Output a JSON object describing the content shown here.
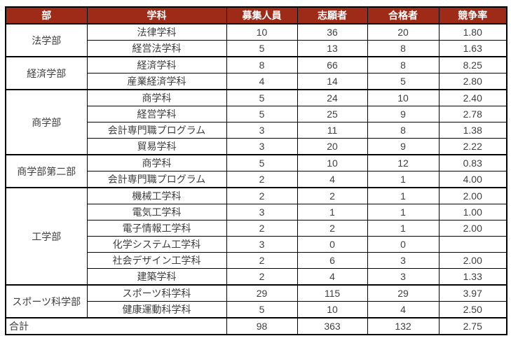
{
  "colors": {
    "header_bg": "#9e2b17",
    "header_text": "#ffffff",
    "body_text": "#3f3f3f",
    "border": "#000000"
  },
  "table": {
    "headers": {
      "dept": "部",
      "subject": "学科",
      "capacity": "募集人員",
      "applicants": "志願者",
      "accepted": "合格者",
      "ratio": "競争率"
    },
    "groups": [
      {
        "dept": "法学部",
        "rows": [
          {
            "name": "法律学科",
            "capacity": "10",
            "applicants": "36",
            "accepted": "20",
            "ratio": "1.80"
          },
          {
            "name": "経営法学科",
            "capacity": "5",
            "applicants": "13",
            "accepted": "8",
            "ratio": "1.63"
          }
        ]
      },
      {
        "dept": "経済学部",
        "rows": [
          {
            "name": "経済学科",
            "capacity": "8",
            "applicants": "66",
            "accepted": "8",
            "ratio": "8.25"
          },
          {
            "name": "産業経済学科",
            "capacity": "4",
            "applicants": "14",
            "accepted": "5",
            "ratio": "2.80"
          }
        ]
      },
      {
        "dept": "商学部",
        "rows": [
          {
            "name": "商学科",
            "capacity": "5",
            "applicants": "24",
            "accepted": "10",
            "ratio": "2.40"
          },
          {
            "name": "経営学科",
            "capacity": "5",
            "applicants": "25",
            "accepted": "9",
            "ratio": "2.78"
          },
          {
            "name": "会計専門職プログラム",
            "capacity": "3",
            "applicants": "11",
            "accepted": "8",
            "ratio": "1.38"
          },
          {
            "name": "貿易学科",
            "capacity": "3",
            "applicants": "20",
            "accepted": "9",
            "ratio": "2.22"
          }
        ]
      },
      {
        "dept": "商学部第二部",
        "rows": [
          {
            "name": "商学科",
            "capacity": "5",
            "applicants": "10",
            "accepted": "12",
            "ratio": "0.83"
          },
          {
            "name": "会計専門職プログラム",
            "capacity": "2",
            "applicants": "4",
            "accepted": "1",
            "ratio": "4.00"
          }
        ]
      },
      {
        "dept": "工学部",
        "rows": [
          {
            "name": "機械工学科",
            "capacity": "2",
            "applicants": "2",
            "accepted": "1",
            "ratio": "2.00"
          },
          {
            "name": "電気工学科",
            "capacity": "3",
            "applicants": "1",
            "accepted": "1",
            "ratio": "1.00"
          },
          {
            "name": "電子情報工学科",
            "capacity": "2",
            "applicants": "2",
            "accepted": "1",
            "ratio": "2.00"
          },
          {
            "name": "化学システム工学科",
            "capacity": "3",
            "applicants": "0",
            "accepted": "0",
            "ratio": ""
          },
          {
            "name": "社会デザイン工学科",
            "capacity": "2",
            "applicants": "6",
            "accepted": "3",
            "ratio": "2.00"
          },
          {
            "name": "建築学科",
            "capacity": "2",
            "applicants": "4",
            "accepted": "3",
            "ratio": "1.33"
          }
        ]
      },
      {
        "dept": "スポーツ科学部",
        "rows": [
          {
            "name": "スポーツ科学科",
            "capacity": "29",
            "applicants": "115",
            "accepted": "29",
            "ratio": "3.97"
          },
          {
            "name": "健康運動科学科",
            "capacity": "5",
            "applicants": "10",
            "accepted": "4",
            "ratio": "2.50"
          }
        ]
      }
    ],
    "total": {
      "label": "合計",
      "capacity": "98",
      "applicants": "363",
      "accepted": "132",
      "ratio": "2.75"
    }
  }
}
